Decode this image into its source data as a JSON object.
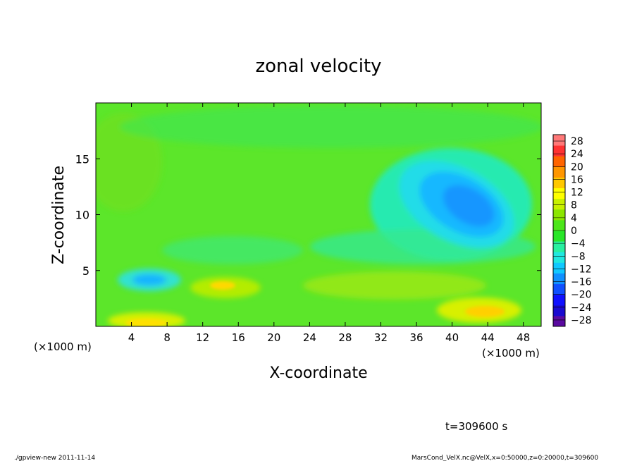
{
  "chart_data": {
    "type": "heatmap",
    "title": "zonal velocity",
    "xlabel": "X-coordinate",
    "ylabel": "Z-coordinate",
    "x_unit_left": "(×1000 m)",
    "x_unit_right": "(×1000 m)",
    "xlim": [
      0,
      50
    ],
    "ylim": [
      0,
      20
    ],
    "xticks": [
      4,
      8,
      12,
      16,
      20,
      24,
      28,
      32,
      36,
      40,
      44,
      48
    ],
    "yticks": [
      5,
      10,
      15
    ],
    "colorbar": {
      "labels": [
        28,
        24,
        20,
        16,
        12,
        8,
        4,
        0,
        -4,
        -8,
        -12,
        -16,
        -20,
        -24,
        -28
      ],
      "range": [
        -30,
        30
      ],
      "colors": [
        "#5a0aa0",
        "#1a0ad0",
        "#1010ff",
        "#1050ff",
        "#1090ff",
        "#10c8ff",
        "#20e8e0",
        "#28f0a0",
        "#28e628",
        "#4ce61a",
        "#8ce600",
        "#c8f000",
        "#ffff00",
        "#ffc800",
        "#ff9600",
        "#ff6400",
        "#ff3232",
        "#ff7878"
      ]
    },
    "features": [
      {
        "label": "background",
        "value": 1
      },
      {
        "label": "negative core upper right",
        "x": 41.5,
        "z": 11,
        "value": -13
      },
      {
        "label": "negative patch lower left",
        "x": 6,
        "z": 4.2,
        "value": -10
      },
      {
        "label": "positive patch near x=14",
        "x": 14.5,
        "z": 3.6,
        "value": 7
      },
      {
        "label": "positive patch near x=42",
        "x": 42.5,
        "z": 1.3,
        "value": 9
      },
      {
        "label": "positive band near surface",
        "x": 6,
        "z": 0.5,
        "value": 9
      }
    ]
  },
  "annotations": {
    "time": "t=309600 s",
    "footer_left": "./gpview-new  2011-11-14",
    "footer_right": "MarsCond_VelX.nc@VelX,x=0:50000,z=0:20000,t=309600"
  }
}
